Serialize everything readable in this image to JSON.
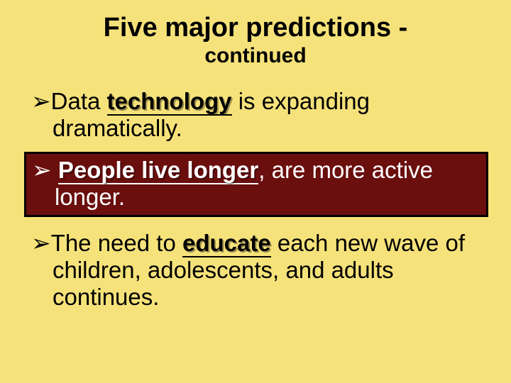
{
  "background_color": "#f6e27a",
  "highlight_box": {
    "bg": "#6a0e0e",
    "border": "#000000",
    "text_color": "#ffffff"
  },
  "title": {
    "line1": "Five major predictions -",
    "line2": "continued",
    "fontsize_line1": 38,
    "fontsize_line2": 30
  },
  "bullets": [
    {
      "arrow": "➢",
      "pre": "Data ",
      "keyword": "technology",
      "post": " is expanding dramatically.",
      "highlighted": false
    },
    {
      "arrow": "➢",
      "pre": " ",
      "keyword": "People live longer",
      "post": ", are more active longer.",
      "highlighted": true
    },
    {
      "arrow": "➢",
      "pre": "The need to ",
      "keyword": "educate",
      "post": " each new wave of children, adolescents, and adults continues.",
      "highlighted": false
    }
  ],
  "typography": {
    "font_family": "Arial",
    "body_fontsize": 33,
    "keyword_weight": "bold",
    "keyword_underline": true,
    "keyword_shadow_color": "rgba(0,0,0,0.35)"
  }
}
